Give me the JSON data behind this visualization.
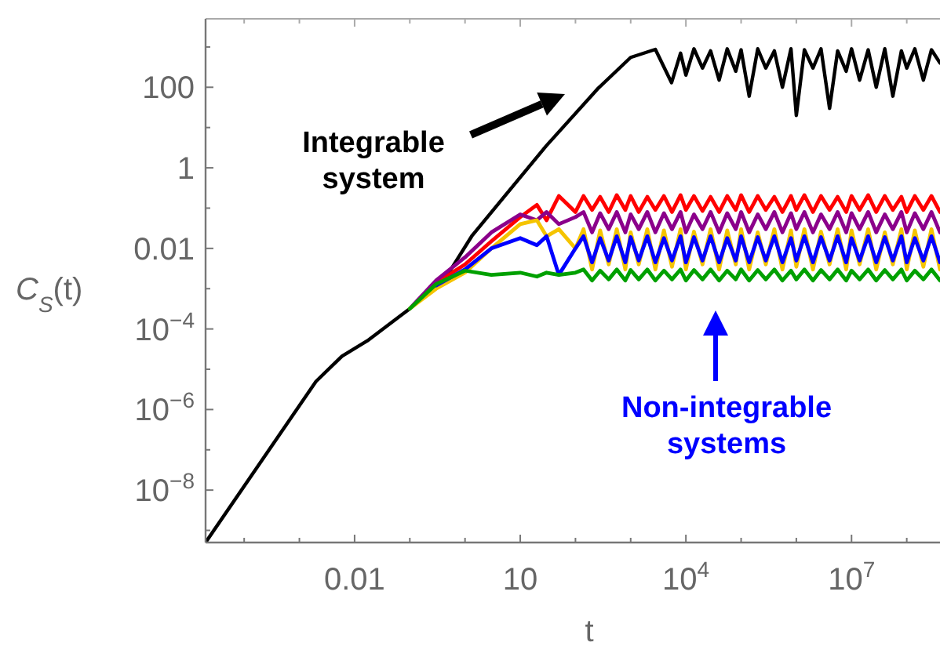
{
  "chart_data": {
    "type": "line",
    "xlabel": "t",
    "ylabel": "C$_{S}$(t)",
    "log": "xy",
    "xlim": [
      2e-05,
      400000000.0
    ],
    "ylim": [
      5e-10,
      5000
    ],
    "xticks": [
      {
        "value": 0.0001,
        "label": null
      },
      {
        "value": 0.001,
        "label": null
      },
      {
        "value": 0.01,
        "label": "0.01"
      },
      {
        "value": 0.1,
        "label": null
      },
      {
        "value": 1,
        "label": null
      },
      {
        "value": 10,
        "label": "10"
      },
      {
        "value": 100,
        "label": null
      },
      {
        "value": 1000,
        "label": null
      },
      {
        "value": 10000.0,
        "label": "10$^{4}$"
      },
      {
        "value": 100000.0,
        "label": null
      },
      {
        "value": 1000000.0,
        "label": null
      },
      {
        "value": 10000000.0,
        "label": "10$^{7}$"
      },
      {
        "value": 100000000.0,
        "label": null
      }
    ],
    "yticks": [
      {
        "value": 1e-09,
        "label": null
      },
      {
        "value": 1e-08,
        "label": "10$^{−8}$"
      },
      {
        "value": 1e-07,
        "label": null
      },
      {
        "value": 1e-06,
        "label": "10$^{−6}$"
      },
      {
        "value": 1e-05,
        "label": null
      },
      {
        "value": 0.0001,
        "label": "10$^{−4}$"
      },
      {
        "value": 0.001,
        "label": null
      },
      {
        "value": 0.01,
        "label": "0.01"
      },
      {
        "value": 0.1,
        "label": null
      },
      {
        "value": 1,
        "label": "1"
      },
      {
        "value": 10,
        "label": null
      },
      {
        "value": 100,
        "label": "100"
      },
      {
        "value": 1000,
        "label": null
      }
    ],
    "annotations": [
      "Integrable\nsystem",
      "Non-integrable\nsystems"
    ],
    "x": [
      0.1,
      0.3,
      1,
      3,
      10,
      20,
      30,
      50,
      100,
      140,
      200,
      280,
      400,
      560,
      800,
      1000,
      1400,
      2000,
      2800,
      4000,
      5600,
      8000,
      10000.0,
      14000.0,
      20000.0,
      28000.0,
      40000.0,
      56000.0,
      80000.0,
      100000.0,
      140000.0,
      200000.0,
      280000.0,
      400000.0,
      560000.0,
      800000.0,
      1000000.0,
      1400000.0,
      2000000.0,
      2800000.0,
      4000000.0,
      5600000.0,
      8000000.0,
      10000000.0,
      14000000.0,
      20000000.0,
      28000000.0,
      40000000.0,
      56000000.0,
      80000000.0,
      100000000.0,
      140000000.0,
      200000000.0,
      280000000.0,
      400000000.0
    ],
    "series": [
      {
        "color": "#000000",
        "x": [
          2e-05,
          0.002,
          0.0059,
          0.017,
          0.1,
          0.45,
          1.35,
          29.5,
          251,
          1000,
          2800,
          5500,
          8000,
          10000.0,
          14000.0,
          20000.0,
          28000.0,
          40000.0,
          56000.0,
          80000.0,
          100000.0,
          140000.0,
          200000.0,
          280000.0,
          400000.0,
          560000.0,
          800000.0,
          1000000.0,
          1400000.0,
          2000000.0,
          2800000.0,
          4000000.0,
          5600000.0,
          8000000.0,
          10000000.0,
          14000000.0,
          20000000.0,
          28000000.0,
          40000000.0,
          56000000.0,
          80000000.0,
          100000000.0,
          140000000.0,
          200000000.0,
          280000000.0,
          400000000.0
        ],
        "values": [
          5e-10,
          5e-06,
          2.1e-05,
          5.1e-05,
          0.00032,
          0.0019,
          0.021,
          3.5,
          91,
          550,
          870,
          130,
          700,
          200,
          900,
          300,
          800,
          150,
          900,
          250,
          850,
          60,
          900,
          300,
          800,
          100,
          900,
          20,
          850,
          300,
          900,
          30,
          800,
          250,
          900,
          150,
          850,
          100,
          900,
          60,
          800,
          300,
          900,
          150,
          850,
          400
        ]
      },
      {
        "color": "#ff0000",
        "values": [
          null,
          0.0014,
          0.004,
          0.015,
          0.06,
          0.12,
          0.05,
          0.2,
          0.08,
          0.2,
          0.09,
          0.19,
          0.08,
          0.21,
          0.09,
          0.2,
          0.08,
          0.19,
          0.09,
          0.2,
          0.08,
          0.21,
          0.09,
          0.2,
          0.085,
          0.19,
          0.08,
          0.2,
          0.09,
          0.21,
          0.08,
          0.2,
          0.09,
          0.19,
          0.08,
          0.2,
          0.09,
          0.21,
          0.08,
          0.2,
          0.09,
          0.19,
          0.08,
          0.2,
          0.09,
          0.21,
          0.08,
          0.2,
          0.09,
          0.19,
          0.08,
          0.2,
          0.09,
          0.2,
          0.08
        ]
      },
      {
        "color": "#8b008b",
        "values": [
          0.00032,
          0.0016,
          0.006,
          0.025,
          0.07,
          0.05,
          0.08,
          0.04,
          0.06,
          0.08,
          0.025,
          0.075,
          0.03,
          0.08,
          0.025,
          0.07,
          0.03,
          0.08,
          0.025,
          0.075,
          0.03,
          0.08,
          0.025,
          0.07,
          0.03,
          0.08,
          0.025,
          0.075,
          0.03,
          0.08,
          0.025,
          0.07,
          0.03,
          0.08,
          0.025,
          0.075,
          0.03,
          0.08,
          0.025,
          0.07,
          0.03,
          0.08,
          0.025,
          0.075,
          0.03,
          0.08,
          0.025,
          0.07,
          0.03,
          0.08,
          0.025,
          0.075,
          0.03,
          0.08,
          0.025
        ]
      },
      {
        "color": "#f5c400",
        "values": [
          0.00032,
          0.001,
          0.0025,
          0.01,
          0.04,
          0.05,
          0.02,
          0.03,
          0.01,
          0.03,
          0.003,
          0.028,
          0.004,
          0.03,
          0.003,
          0.025,
          0.004,
          0.03,
          0.003,
          0.028,
          0.0035,
          0.03,
          0.003,
          0.026,
          0.004,
          0.03,
          0.003,
          0.028,
          0.004,
          0.03,
          0.003,
          0.025,
          0.004,
          0.03,
          0.003,
          0.028,
          0.0035,
          0.03,
          0.003,
          0.026,
          0.004,
          0.03,
          0.003,
          0.028,
          0.004,
          0.03,
          0.003,
          0.025,
          0.004,
          0.03,
          0.003,
          0.028,
          0.0035,
          0.03,
          0.003
        ]
      },
      {
        "color": "#0000ff",
        "values": [
          null,
          0.0012,
          0.003,
          0.01,
          0.018,
          0.012,
          0.02,
          0.0022,
          0.01,
          0.02,
          0.0045,
          0.018,
          0.005,
          0.02,
          0.0045,
          0.019,
          0.005,
          0.02,
          0.0045,
          0.018,
          0.005,
          0.02,
          0.0045,
          0.019,
          0.005,
          0.02,
          0.0045,
          0.018,
          0.005,
          0.02,
          0.0045,
          0.019,
          0.005,
          0.02,
          0.0045,
          0.018,
          0.005,
          0.02,
          0.0045,
          0.019,
          0.005,
          0.02,
          0.0045,
          0.018,
          0.005,
          0.02,
          0.0045,
          0.019,
          0.005,
          0.02,
          0.0045,
          0.018,
          0.005,
          0.02,
          0.0045
        ]
      },
      {
        "color": "#00a000",
        "values": [
          0.00032,
          0.0013,
          0.0028,
          0.0022,
          0.0025,
          0.002,
          0.0025,
          0.0022,
          0.0025,
          0.003,
          0.0016,
          0.0028,
          0.0017,
          0.003,
          0.0016,
          0.0029,
          0.0017,
          0.003,
          0.0016,
          0.0028,
          0.0017,
          0.003,
          0.0016,
          0.0029,
          0.0017,
          0.003,
          0.0016,
          0.0028,
          0.0017,
          0.003,
          0.0016,
          0.0029,
          0.0017,
          0.003,
          0.0016,
          0.0028,
          0.0017,
          0.003,
          0.0016,
          0.0029,
          0.0017,
          0.003,
          0.0016,
          0.0028,
          0.0017,
          0.003,
          0.0016,
          0.0029,
          0.0017,
          0.003,
          0.0016,
          0.0028,
          0.0017,
          0.003,
          0.0016
        ]
      }
    ]
  }
}
